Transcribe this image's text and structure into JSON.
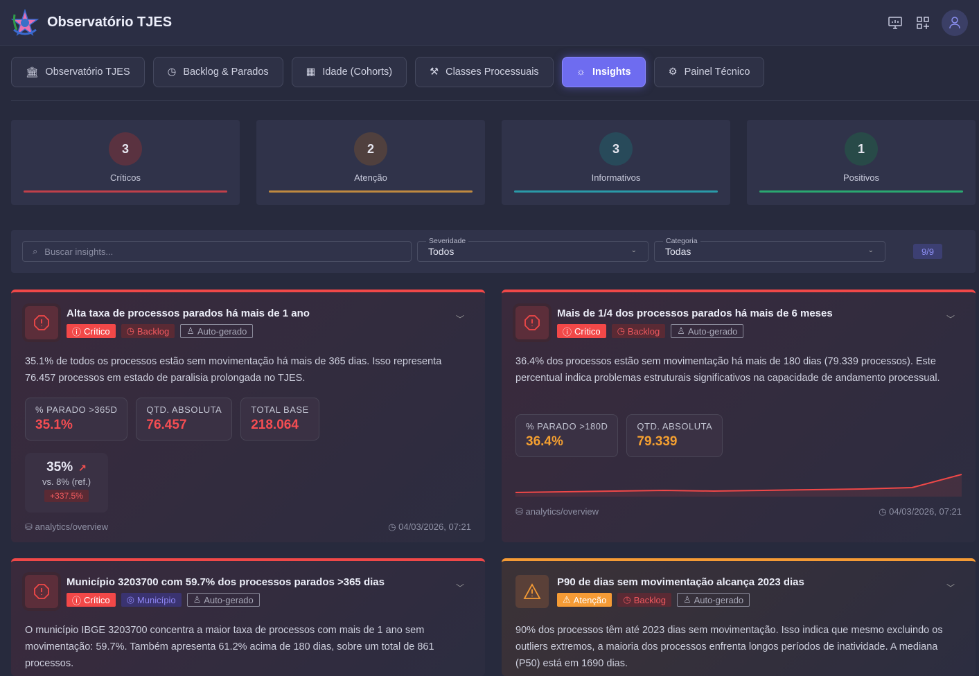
{
  "header": {
    "title": "Observatório TJES",
    "icons": [
      "monitor-icon",
      "grid-plus-icon",
      "user-icon"
    ]
  },
  "nav": [
    {
      "label": "Observatório TJES",
      "icon": "bank-icon",
      "active": false
    },
    {
      "label": "Backlog & Parados",
      "icon": "clock-pause-icon",
      "active": false
    },
    {
      "label": "Idade (Cohorts)",
      "icon": "calendar-clock-icon",
      "active": false
    },
    {
      "label": "Classes Processuais",
      "icon": "gavel-icon",
      "active": false
    },
    {
      "label": "Insights",
      "icon": "lightbulb-icon",
      "active": true
    },
    {
      "label": "Painel Técnico",
      "icon": "cpu-icon",
      "active": false
    }
  ],
  "summary": [
    {
      "count": "3",
      "label": "Críticos",
      "color": "#c0404a"
    },
    {
      "count": "2",
      "label": "Atenção",
      "color": "#c08a40"
    },
    {
      "count": "3",
      "label": "Informativos",
      "color": "#2a9aa8"
    },
    {
      "count": "1",
      "label": "Positivos",
      "color": "#2aa870"
    }
  ],
  "filters": {
    "search_placeholder": "Buscar insights...",
    "severity_label": "Severidade",
    "severity_value": "Todos",
    "category_label": "Categoria",
    "category_value": "Todas",
    "count": "9/9"
  },
  "cards": [
    {
      "title": "Alta taxa de processos parados há mais de 1 ano",
      "severity": "Crítico",
      "category": "Backlog",
      "source_tag": "Auto-gerado",
      "description": "35.1% de todos os processos estão sem movimentação há mais de 365 dias. Isso representa 76.457 processos em estado de paralisia prolongada no TJES.",
      "metrics": [
        {
          "label": "% PARADO >365D",
          "value": "35.1%"
        },
        {
          "label": "QTD. ABSOLUTA",
          "value": "76.457"
        },
        {
          "label": "TOTAL BASE",
          "value": "218.064"
        }
      ],
      "comparison": {
        "value": "35%",
        "reference": "vs. 8% (ref.)",
        "delta": "+337.5%"
      },
      "source": "analytics/overview",
      "timestamp": "04/03/2026, 07:21"
    },
    {
      "title": "Mais de 1/4 dos processos parados há mais de 6 meses",
      "severity": "Crítico",
      "category": "Backlog",
      "source_tag": "Auto-gerado",
      "description": "36.4% dos processos estão sem movimentação há mais de 180 dias (79.339 processos). Este percentual indica problemas estruturais significativos na capacidade de andamento processual.",
      "metrics": [
        {
          "label": "% PARADO >180D",
          "value": "36.4%"
        },
        {
          "label": "QTD. ABSOLUTA",
          "value": "79.339"
        }
      ],
      "sparkline": [
        2,
        3,
        4,
        5,
        4,
        5,
        6,
        7,
        9,
        28
      ],
      "source": "analytics/overview",
      "timestamp": "04/03/2026, 07:21"
    },
    {
      "title": "Município 3203700 com 59.7% dos processos parados >365 dias",
      "severity": "Crítico",
      "category": "Município",
      "source_tag": "Auto-gerado",
      "description": "O município IBGE 3203700 concentra a maior taxa de processos com mais de 1 ano sem movimentação: 59.7%. Também apresenta 61.2% acima de 180 dias, sobre um total de 861 processos."
    },
    {
      "title": "P90 de dias sem movimentação alcança 2023 dias",
      "severity": "Atenção",
      "category": "Backlog",
      "source_tag": "Auto-gerado",
      "description": "90% dos processos têm até 2023 dias sem movimentação. Isso indica que mesmo excluindo os outliers extremos, a maioria dos processos enfrenta longos períodos de inatividade. A mediana (P50) está em 1690 dias."
    }
  ]
}
